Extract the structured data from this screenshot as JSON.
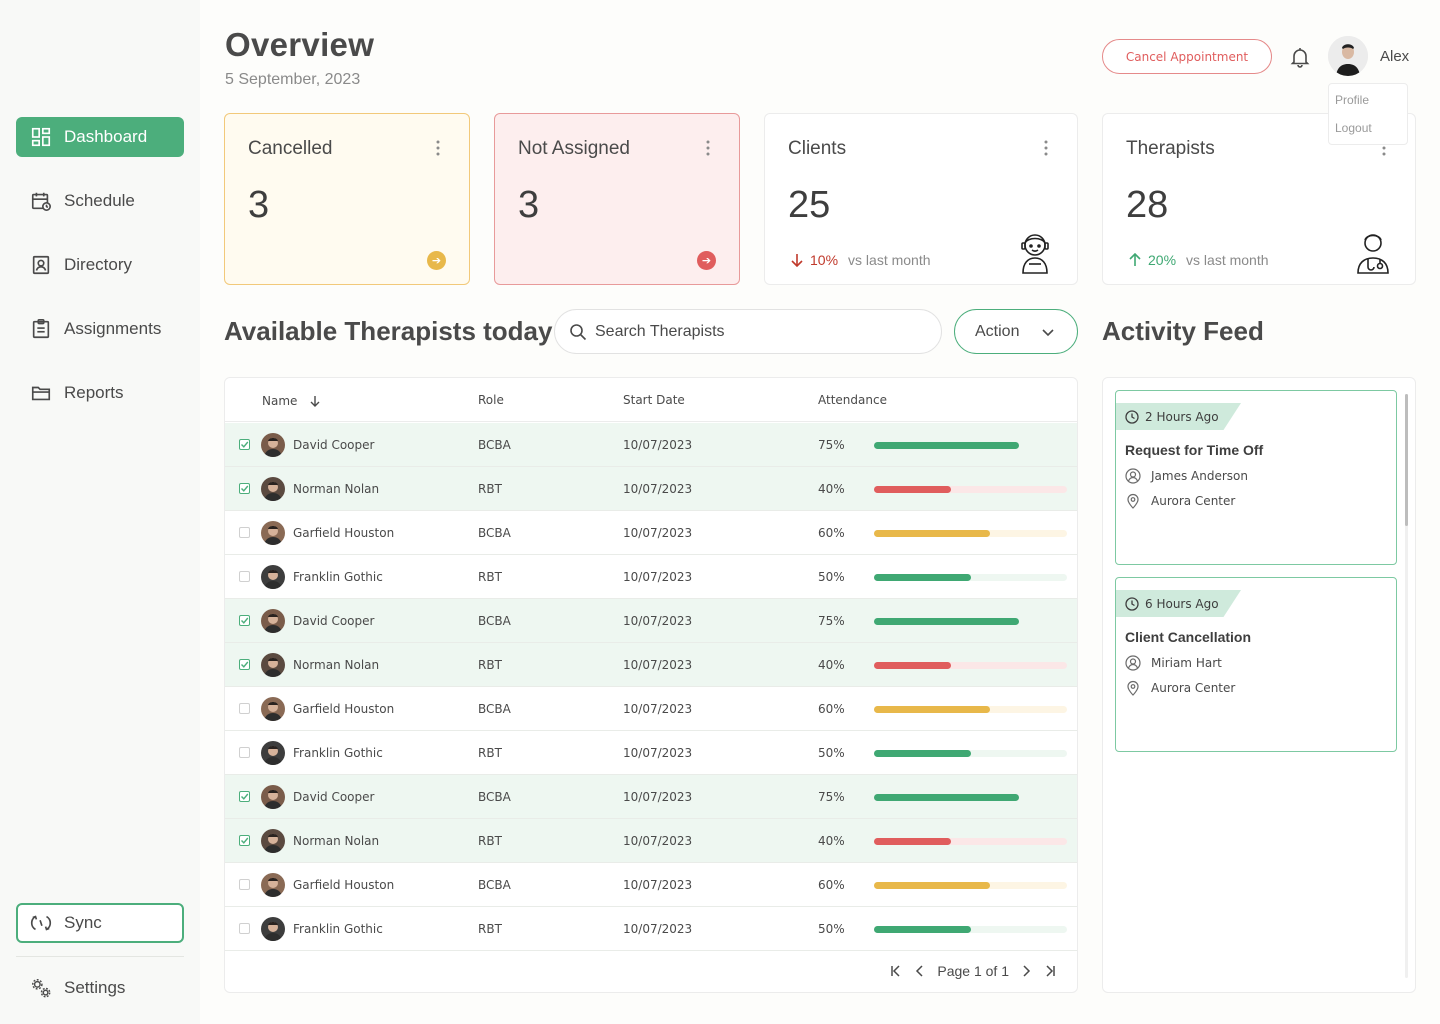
{
  "sidebar": {
    "items": [
      {
        "label": "Dashboard",
        "icon": "dashboard-icon",
        "active": true
      },
      {
        "label": "Schedule",
        "icon": "calendar-icon"
      },
      {
        "label": "Directory",
        "icon": "contact-book-icon"
      },
      {
        "label": "Assignments",
        "icon": "clipboard-icon"
      },
      {
        "label": "Reports",
        "icon": "folder-icon"
      }
    ],
    "sync_label": "Sync",
    "settings_label": "Settings"
  },
  "header": {
    "title": "Overview",
    "date": "5 September, 2023",
    "cancel_label": "Cancel Appointment",
    "user_name": "Alex",
    "menu": {
      "profile": "Profile",
      "logout": "Logout"
    }
  },
  "stats": {
    "cancelled": {
      "title": "Cancelled",
      "value": "3"
    },
    "not_assigned": {
      "title": "Not Assigned",
      "value": "3"
    },
    "clients": {
      "title": "Clients",
      "value": "25",
      "change": "10%",
      "suffix": "vs last month",
      "direction": "down"
    },
    "therapists": {
      "title": "Therapists",
      "value": "28",
      "change": "20%",
      "suffix": "vs last month",
      "direction": "up"
    }
  },
  "colors": {
    "accent": "#4cae7c",
    "warn": "#e8b84a",
    "danger": "#e05d5d"
  },
  "therapists": {
    "title": "Available Therapists today",
    "search_placeholder": "Search Therapists",
    "action_label": "Action",
    "columns": {
      "name": "Name",
      "role": "Role",
      "start": "Start Date",
      "attendance": "Attendance"
    },
    "rows": [
      {
        "name": "David Cooper",
        "role": "BCBA",
        "start": "10/07/2023",
        "pct": "75%",
        "value": 75,
        "color": "#3fa873",
        "track": "#eef7f1",
        "selected": true
      },
      {
        "name": "Norman Nolan",
        "role": "RBT",
        "start": "10/07/2023",
        "pct": "40%",
        "value": 40,
        "color": "#e05d5d",
        "track": "#fbe7e7",
        "selected": true
      },
      {
        "name": "Garfield Houston",
        "role": "BCBA",
        "start": "10/07/2023",
        "pct": "60%",
        "value": 60,
        "color": "#e8b84a",
        "track": "#fdf5e4",
        "selected": false
      },
      {
        "name": "Franklin Gothic",
        "role": "RBT",
        "start": "10/07/2023",
        "pct": "50%",
        "value": 50,
        "color": "#3fa873",
        "track": "#eef7f1",
        "selected": false
      },
      {
        "name": "David Cooper",
        "role": "BCBA",
        "start": "10/07/2023",
        "pct": "75%",
        "value": 75,
        "color": "#3fa873",
        "track": "#eef7f1",
        "selected": true
      },
      {
        "name": "Norman Nolan",
        "role": "RBT",
        "start": "10/07/2023",
        "pct": "40%",
        "value": 40,
        "color": "#e05d5d",
        "track": "#fbe7e7",
        "selected": true
      },
      {
        "name": "Garfield Houston",
        "role": "BCBA",
        "start": "10/07/2023",
        "pct": "60%",
        "value": 60,
        "color": "#e8b84a",
        "track": "#fdf5e4",
        "selected": false
      },
      {
        "name": "Franklin Gothic",
        "role": "RBT",
        "start": "10/07/2023",
        "pct": "50%",
        "value": 50,
        "color": "#3fa873",
        "track": "#eef7f1",
        "selected": false
      },
      {
        "name": "David Cooper",
        "role": "BCBA",
        "start": "10/07/2023",
        "pct": "75%",
        "value": 75,
        "color": "#3fa873",
        "track": "#eef7f1",
        "selected": true
      },
      {
        "name": "Norman Nolan",
        "role": "RBT",
        "start": "10/07/2023",
        "pct": "40%",
        "value": 40,
        "color": "#e05d5d",
        "track": "#fbe7e7",
        "selected": true
      },
      {
        "name": "Garfield Houston",
        "role": "BCBA",
        "start": "10/07/2023",
        "pct": "60%",
        "value": 60,
        "color": "#e8b84a",
        "track": "#fdf5e4",
        "selected": false
      },
      {
        "name": "Franklin Gothic",
        "role": "RBT",
        "start": "10/07/2023",
        "pct": "50%",
        "value": 50,
        "color": "#3fa873",
        "track": "#eef7f1",
        "selected": false
      }
    ],
    "pagination": "Page 1 of 1"
  },
  "feed": {
    "title": "Activity Feed",
    "items": [
      {
        "time": "2 Hours Ago",
        "title": "Request for Time Off",
        "person": "James Anderson",
        "location": "Aurora Center"
      },
      {
        "time": "6 Hours Ago",
        "title": "Client Cancellation",
        "person": "Miriam Hart",
        "location": "Aurora Center"
      }
    ]
  }
}
